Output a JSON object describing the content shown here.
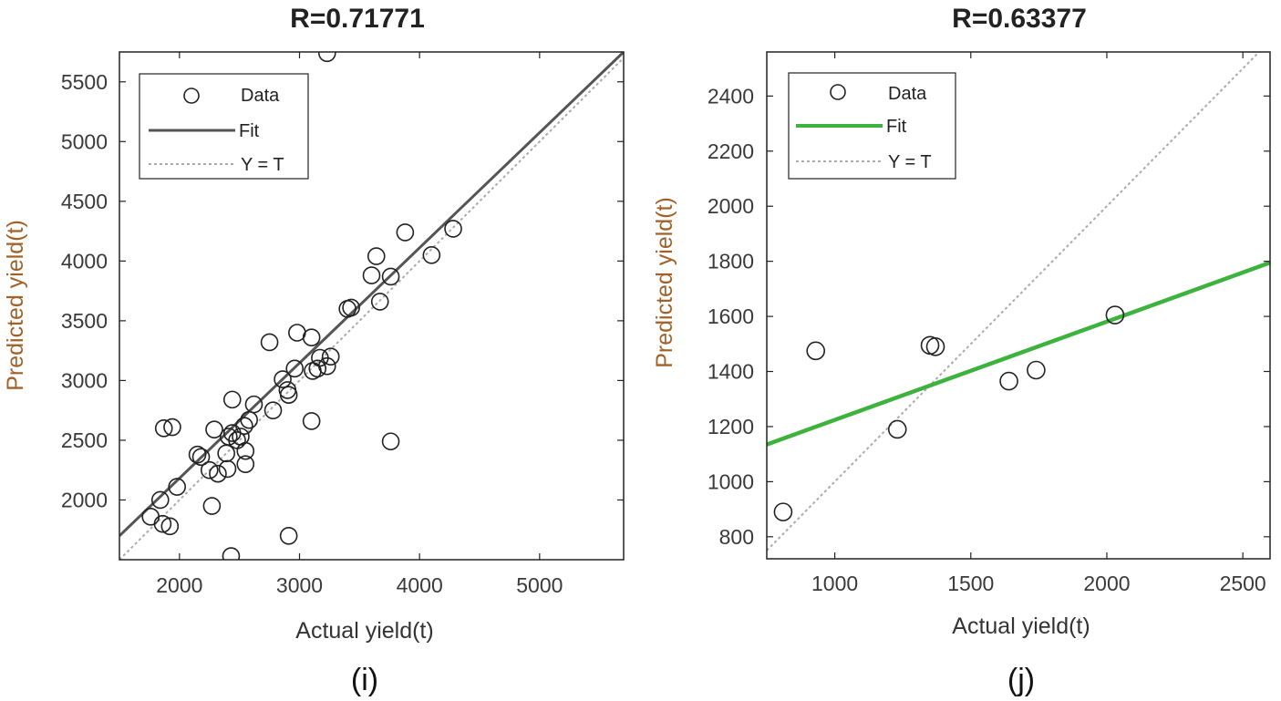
{
  "chart_data": [
    {
      "type": "scatter",
      "panel_label": "(i)",
      "title": "R=0.71771",
      "xlabel": "Actual yield(t)",
      "ylabel": "Predicted yield(t)",
      "xlim": [
        1500,
        5700
      ],
      "ylim": [
        1500,
        5750
      ],
      "xticks": [
        2000,
        3000,
        4000,
        5000
      ],
      "yticks": [
        2000,
        2500,
        3000,
        3500,
        4000,
        4500,
        5000,
        5500
      ],
      "fit_color": "#555555",
      "identity_color": "#aaaaaa",
      "fit": {
        "x": [
          1500,
          5700
        ],
        "y": [
          1700,
          5750
        ]
      },
      "identity": {
        "x": [
          1500,
          5700
        ],
        "y": [
          1500,
          5700
        ]
      },
      "legend": {
        "position": "top-left",
        "entries": [
          "Data",
          "Fit",
          "Y = T"
        ]
      },
      "points": {
        "x": [
          3230,
          4280,
          3880,
          4100,
          3640,
          3600,
          3760,
          3670,
          3400,
          3430,
          2750,
          2980,
          3100,
          3170,
          3260,
          3150,
          3230,
          3110,
          2960,
          2860,
          2900,
          2910,
          2780,
          2620,
          2580,
          2440,
          3100,
          2540,
          2510,
          2410,
          2440,
          2290,
          1870,
          1940,
          2480,
          2550,
          2390,
          2150,
          2180,
          2250,
          2320,
          2400,
          2550,
          1980,
          1840,
          1760,
          1860,
          1920,
          2270,
          3760,
          2910,
          2430
        ],
        "y": [
          5740,
          4270,
          4240,
          4050,
          4040,
          3880,
          3870,
          3660,
          3600,
          3610,
          3320,
          3400,
          3360,
          3190,
          3200,
          3100,
          3120,
          3080,
          3100,
          3010,
          2920,
          2880,
          2750,
          2800,
          2670,
          2840,
          2660,
          2620,
          2530,
          2530,
          2560,
          2590,
          2600,
          2610,
          2500,
          2410,
          2390,
          2380,
          2360,
          2250,
          2220,
          2260,
          2300,
          2110,
          2000,
          1860,
          1800,
          1780,
          1950,
          2490,
          1700,
          1530
        ]
      }
    },
    {
      "type": "scatter",
      "panel_label": "(j)",
      "title": "R=0.63377",
      "xlabel": "Actual yield(t)",
      "ylabel": "Predicted yield(t)",
      "xlim": [
        750,
        2600
      ],
      "ylim": [
        720,
        2560
      ],
      "xticks": [
        1000,
        1500,
        2000,
        2500
      ],
      "yticks": [
        800,
        1000,
        1200,
        1400,
        1600,
        1800,
        2000,
        2200,
        2400
      ],
      "fit_color": "#3db33d",
      "identity_color": "#aaaaaa",
      "fit": {
        "x": [
          750,
          2600
        ],
        "y": [
          1135,
          1795
        ]
      },
      "identity": {
        "x": [
          750,
          2600
        ],
        "y": [
          750,
          2600
        ]
      },
      "legend": {
        "position": "top-left",
        "entries": [
          "Data",
          "Fit",
          "Y = T"
        ]
      },
      "points": {
        "x": [
          2030,
          1740,
          1640,
          1350,
          1370,
          1230,
          930,
          810
        ],
        "y": [
          1605,
          1405,
          1365,
          1495,
          1490,
          1190,
          1475,
          890
        ]
      }
    }
  ]
}
